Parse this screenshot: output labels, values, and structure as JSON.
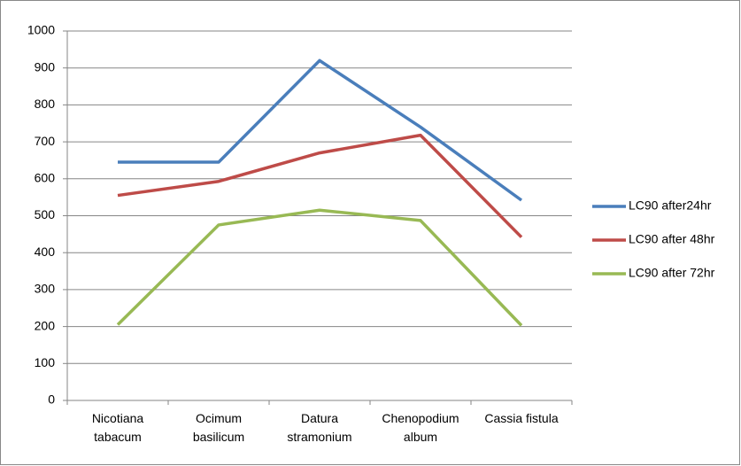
{
  "chart_data": {
    "type": "line",
    "categories": [
      "Nicotiana tabacum",
      "Ocimum basilicum",
      "Datura stramonium",
      "Chenopodium album",
      "Cassia fistula"
    ],
    "series": [
      {
        "name": "LC90 after24hr",
        "color": "#4a7ebb",
        "values": [
          645,
          645,
          920,
          740,
          542
        ]
      },
      {
        "name": "LC90 after 48hr",
        "color": "#be4b48",
        "values": [
          555,
          593,
          670,
          718,
          442
        ]
      },
      {
        "name": "LC90 after 72hr",
        "color": "#98b954",
        "values": [
          205,
          475,
          515,
          487,
          203
        ]
      }
    ],
    "ylim": [
      0,
      1000
    ],
    "yticks": [
      0,
      100,
      200,
      300,
      400,
      500,
      600,
      700,
      800,
      900,
      1000
    ],
    "grid": true,
    "legend": "right"
  }
}
